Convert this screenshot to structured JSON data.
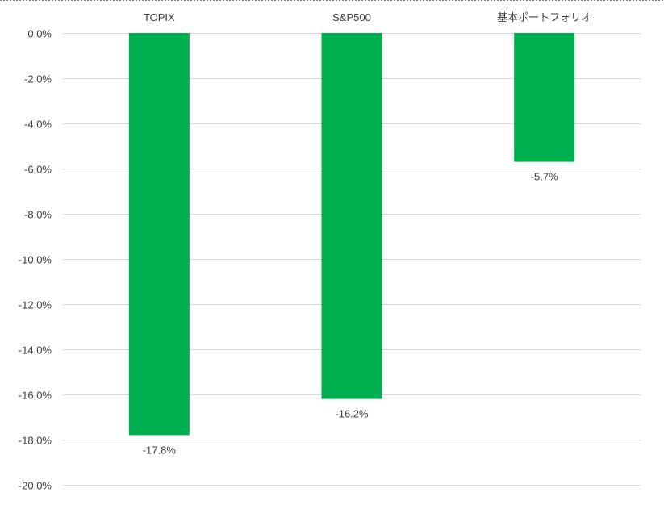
{
  "chart_data": {
    "type": "bar",
    "orientation": "vertical",
    "title": "",
    "xlabel": "",
    "ylabel": "",
    "categories": [
      "TOPIX",
      "S&P500",
      "基本ポートフォリオ"
    ],
    "values": [
      -17.8,
      -16.2,
      -5.7
    ],
    "data_labels": [
      "-17.8%",
      "-16.2%",
      "-5.7%"
    ],
    "ylim": [
      -20,
      0
    ],
    "yticks": [
      0,
      -2,
      -4,
      -6,
      -8,
      -10,
      -12,
      -14,
      -16,
      -18,
      -20
    ],
    "ytick_labels": [
      "0.0%",
      "-2.0%",
      "-4.0%",
      "-6.0%",
      "-8.0%",
      "-10.0%",
      "-12.0%",
      "-14.0%",
      "-16.0%",
      "-18.0%",
      "-20.0%"
    ],
    "category_axis_position": "top",
    "grid": true,
    "legend": "none",
    "bar_color": "#00b050",
    "grid_color": "#d9d9d9",
    "text_color": "#404040"
  }
}
